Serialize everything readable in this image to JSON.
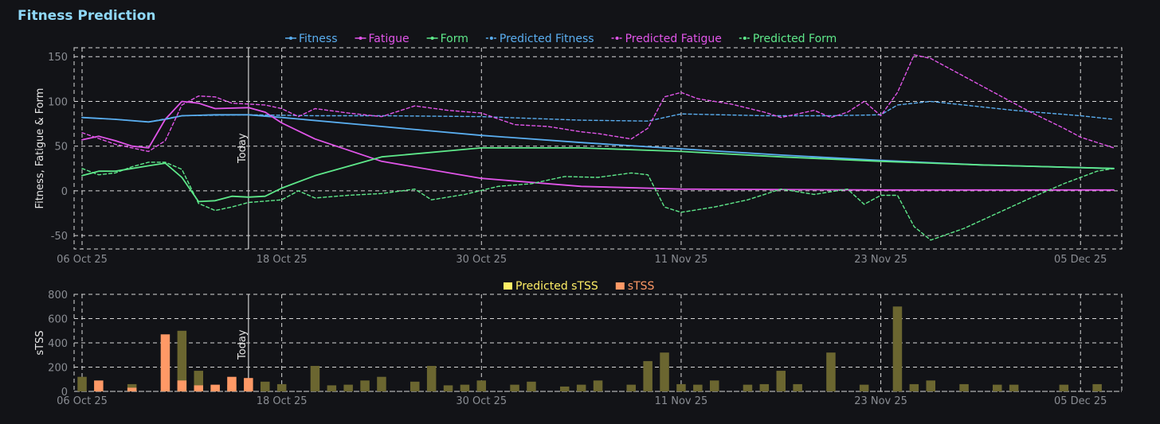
{
  "page": {
    "title": "Fitness Prediction"
  },
  "chart_data": [
    {
      "type": "line",
      "ylabel": "Fitness, Fatigue & Form",
      "ylim": [
        -65,
        160
      ],
      "yticks": [
        -50,
        0,
        50,
        100,
        150
      ],
      "xlim": [
        "2025-10-06",
        "2025-12-07"
      ],
      "xticks": [
        {
          "date": "2025-10-06",
          "label": "06 Oct 25"
        },
        {
          "date": "2025-10-18",
          "label": "18 Oct 25"
        },
        {
          "date": "2025-10-30",
          "label": "30 Oct 25"
        },
        {
          "date": "2025-11-11",
          "label": "11 Nov 25"
        },
        {
          "date": "2025-11-23",
          "label": "23 Nov 25"
        },
        {
          "date": "2025-12-05",
          "label": "05 Dec 25"
        }
      ],
      "grid": true,
      "legend_position": "top-center",
      "today": {
        "date": "2025-10-16",
        "label": "Today"
      },
      "series": [
        {
          "name": "Fitness",
          "color": "#5aaef0",
          "dashed": false,
          "points": [
            [
              "2025-10-06",
              82
            ],
            [
              "2025-10-08",
              80
            ],
            [
              "2025-10-10",
              77
            ],
            [
              "2025-10-11",
              80
            ],
            [
              "2025-10-12",
              84
            ],
            [
              "2025-10-14",
              85
            ],
            [
              "2025-10-16",
              85
            ],
            [
              "2025-10-18",
              82
            ],
            [
              "2025-10-24",
              72
            ],
            [
              "2025-10-30",
              62
            ],
            [
              "2025-11-05",
              54
            ],
            [
              "2025-11-11",
              47
            ],
            [
              "2025-11-17",
              40
            ],
            [
              "2025-11-23",
              34
            ],
            [
              "2025-11-29",
              29
            ],
            [
              "2025-12-07",
              25
            ]
          ]
        },
        {
          "name": "Fatigue",
          "color": "#e055e8",
          "dashed": false,
          "points": [
            [
              "2025-10-06",
              57
            ],
            [
              "2025-10-07",
              61
            ],
            [
              "2025-10-08",
              56
            ],
            [
              "2025-10-09",
              50
            ],
            [
              "2025-10-10",
              48
            ],
            [
              "2025-10-11",
              80
            ],
            [
              "2025-10-12",
              100
            ],
            [
              "2025-10-13",
              98
            ],
            [
              "2025-10-14",
              92
            ],
            [
              "2025-10-16",
              93
            ],
            [
              "2025-10-17",
              88
            ],
            [
              "2025-10-18",
              76
            ],
            [
              "2025-10-20",
              58
            ],
            [
              "2025-10-24",
              33
            ],
            [
              "2025-10-30",
              14
            ],
            [
              "2025-11-05",
              5
            ],
            [
              "2025-11-11",
              2
            ],
            [
              "2025-11-23",
              1
            ],
            [
              "2025-12-07",
              1
            ]
          ]
        },
        {
          "name": "Form",
          "color": "#5ee88a",
          "dashed": false,
          "points": [
            [
              "2025-10-06",
              17
            ],
            [
              "2025-10-07",
              22
            ],
            [
              "2025-10-08",
              22
            ],
            [
              "2025-10-09",
              25
            ],
            [
              "2025-10-10",
              28
            ],
            [
              "2025-10-11",
              31
            ],
            [
              "2025-10-12",
              15
            ],
            [
              "2025-10-13",
              -12
            ],
            [
              "2025-10-14",
              -11
            ],
            [
              "2025-10-15",
              -6
            ],
            [
              "2025-10-16",
              -7
            ],
            [
              "2025-10-17",
              -6
            ],
            [
              "2025-10-18",
              3
            ],
            [
              "2025-10-20",
              17
            ],
            [
              "2025-10-24",
              38
            ],
            [
              "2025-10-30",
              48
            ],
            [
              "2025-11-05",
              48
            ],
            [
              "2025-11-11",
              44
            ],
            [
              "2025-11-17",
              38
            ],
            [
              "2025-11-23",
              33
            ],
            [
              "2025-11-29",
              29
            ],
            [
              "2025-12-07",
              25
            ]
          ]
        },
        {
          "name": "Predicted Fitness",
          "color": "#5aaef0",
          "dashed": true,
          "points": [
            [
              "2025-10-06",
              82
            ],
            [
              "2025-10-08",
              80
            ],
            [
              "2025-10-10",
              77
            ],
            [
              "2025-10-12",
              84
            ],
            [
              "2025-10-16",
              85
            ],
            [
              "2025-10-20",
              84
            ],
            [
              "2025-10-24",
              84
            ],
            [
              "2025-10-30",
              83
            ],
            [
              "2025-11-05",
              79
            ],
            [
              "2025-11-09",
              78
            ],
            [
              "2025-11-11",
              86
            ],
            [
              "2025-11-16",
              84
            ],
            [
              "2025-11-20",
              84
            ],
            [
              "2025-11-23",
              85
            ],
            [
              "2025-11-24",
              96
            ],
            [
              "2025-11-26",
              100
            ],
            [
              "2025-12-01",
              90
            ],
            [
              "2025-12-05",
              84
            ],
            [
              "2025-12-07",
              80
            ]
          ]
        },
        {
          "name": "Predicted Fatigue",
          "color": "#e055e8",
          "dashed": true,
          "points": [
            [
              "2025-10-06",
              65
            ],
            [
              "2025-10-08",
              52
            ],
            [
              "2025-10-10",
              44
            ],
            [
              "2025-10-11",
              56
            ],
            [
              "2025-10-12",
              96
            ],
            [
              "2025-10-13",
              106
            ],
            [
              "2025-10-14",
              105
            ],
            [
              "2025-10-15",
              98
            ],
            [
              "2025-10-17",
              96
            ],
            [
              "2025-10-18",
              92
            ],
            [
              "2025-10-19",
              83
            ],
            [
              "2025-10-20",
              92
            ],
            [
              "2025-10-22",
              87
            ],
            [
              "2025-10-24",
              83
            ],
            [
              "2025-10-26",
              95
            ],
            [
              "2025-10-28",
              90
            ],
            [
              "2025-10-30",
              87
            ],
            [
              "2025-11-01",
              74
            ],
            [
              "2025-11-03",
              72
            ],
            [
              "2025-11-05",
              66
            ],
            [
              "2025-11-06",
              64
            ],
            [
              "2025-11-08",
              58
            ],
            [
              "2025-11-09",
              70
            ],
            [
              "2025-11-10",
              105
            ],
            [
              "2025-11-11",
              110
            ],
            [
              "2025-11-12",
              103
            ],
            [
              "2025-11-14",
              97
            ],
            [
              "2025-11-16",
              88
            ],
            [
              "2025-11-17",
              82
            ],
            [
              "2025-11-19",
              90
            ],
            [
              "2025-11-20",
              82
            ],
            [
              "2025-11-21",
              88
            ],
            [
              "2025-11-22",
              100
            ],
            [
              "2025-11-23",
              84
            ],
            [
              "2025-11-24",
              110
            ],
            [
              "2025-11-25",
              152
            ],
            [
              "2025-11-26",
              148
            ],
            [
              "2025-11-28",
              128
            ],
            [
              "2025-11-30",
              108
            ],
            [
              "2025-12-02",
              88
            ],
            [
              "2025-12-04",
              70
            ],
            [
              "2025-12-05",
              60
            ],
            [
              "2025-12-07",
              48
            ]
          ]
        },
        {
          "name": "Predicted Form",
          "color": "#5ee88a",
          "dashed": true,
          "points": [
            [
              "2025-10-06",
              25
            ],
            [
              "2025-10-07",
              18
            ],
            [
              "2025-10-08",
              20
            ],
            [
              "2025-10-09",
              27
            ],
            [
              "2025-10-10",
              32
            ],
            [
              "2025-10-11",
              32
            ],
            [
              "2025-10-12",
              24
            ],
            [
              "2025-10-13",
              -14
            ],
            [
              "2025-10-14",
              -22
            ],
            [
              "2025-10-15",
              -18
            ],
            [
              "2025-10-16",
              -13
            ],
            [
              "2025-10-18",
              -10
            ],
            [
              "2025-10-19",
              0
            ],
            [
              "2025-10-20",
              -8
            ],
            [
              "2025-10-22",
              -5
            ],
            [
              "2025-10-24",
              -3
            ],
            [
              "2025-10-26",
              2
            ],
            [
              "2025-10-27",
              -10
            ],
            [
              "2025-10-29",
              -4
            ],
            [
              "2025-10-31",
              5
            ],
            [
              "2025-11-02",
              8
            ],
            [
              "2025-11-04",
              16
            ],
            [
              "2025-11-06",
              15
            ],
            [
              "2025-11-08",
              20
            ],
            [
              "2025-11-09",
              18
            ],
            [
              "2025-11-10",
              -18
            ],
            [
              "2025-11-11",
              -24
            ],
            [
              "2025-11-13",
              -18
            ],
            [
              "2025-11-15",
              -10
            ],
            [
              "2025-11-17",
              2
            ],
            [
              "2025-11-19",
              -4
            ],
            [
              "2025-11-21",
              2
            ],
            [
              "2025-11-22",
              -15
            ],
            [
              "2025-11-23",
              -5
            ],
            [
              "2025-11-24",
              -5
            ],
            [
              "2025-11-25",
              -40
            ],
            [
              "2025-11-26",
              -55
            ],
            [
              "2025-11-28",
              -42
            ],
            [
              "2025-11-30",
              -25
            ],
            [
              "2025-12-02",
              -8
            ],
            [
              "2025-12-04",
              8
            ],
            [
              "2025-12-06",
              22
            ],
            [
              "2025-12-07",
              25
            ]
          ]
        }
      ]
    },
    {
      "type": "bar",
      "ylabel": "sTSS",
      "ylim": [
        0,
        800
      ],
      "yticks": [
        0,
        200,
        400,
        600,
        800
      ],
      "xlim": [
        "2025-10-06",
        "2025-12-07"
      ],
      "xticks": [
        {
          "date": "2025-10-06",
          "label": "06 Oct 25"
        },
        {
          "date": "2025-10-18",
          "label": "18 Oct 25"
        },
        {
          "date": "2025-10-30",
          "label": "30 Oct 25"
        },
        {
          "date": "2025-11-11",
          "label": "11 Nov 25"
        },
        {
          "date": "2025-11-23",
          "label": "23 Nov 25"
        },
        {
          "date": "2025-12-05",
          "label": "05 Dec 25"
        }
      ],
      "grid": true,
      "legend_position": "top-center",
      "today": {
        "date": "2025-10-16",
        "label": "Today"
      },
      "series": [
        {
          "name": "Predicted sTSS",
          "color": "#ffee66",
          "bar_color": "#6b6630",
          "points": [
            [
              "2025-10-06",
              120
            ],
            [
              "2025-10-09",
              60
            ],
            [
              "2025-10-12",
              500
            ],
            [
              "2025-10-13",
              170
            ],
            [
              "2025-10-14",
              50
            ],
            [
              "2025-10-15",
              55
            ],
            [
              "2025-10-17",
              80
            ],
            [
              "2025-10-18",
              60
            ],
            [
              "2025-10-20",
              210
            ],
            [
              "2025-10-21",
              50
            ],
            [
              "2025-10-22",
              55
            ],
            [
              "2025-10-23",
              90
            ],
            [
              "2025-10-24",
              120
            ],
            [
              "2025-10-26",
              80
            ],
            [
              "2025-10-27",
              210
            ],
            [
              "2025-10-28",
              50
            ],
            [
              "2025-10-29",
              55
            ],
            [
              "2025-10-30",
              90
            ],
            [
              "2025-11-01",
              55
            ],
            [
              "2025-11-02",
              80
            ],
            [
              "2025-11-04",
              40
            ],
            [
              "2025-11-05",
              55
            ],
            [
              "2025-11-06",
              90
            ],
            [
              "2025-11-08",
              55
            ],
            [
              "2025-11-09",
              250
            ],
            [
              "2025-11-10",
              320
            ],
            [
              "2025-11-11",
              60
            ],
            [
              "2025-11-12",
              55
            ],
            [
              "2025-11-13",
              90
            ],
            [
              "2025-11-15",
              55
            ],
            [
              "2025-11-16",
              60
            ],
            [
              "2025-11-17",
              170
            ],
            [
              "2025-11-18",
              60
            ],
            [
              "2025-11-20",
              320
            ],
            [
              "2025-11-22",
              55
            ],
            [
              "2025-11-24",
              700
            ],
            [
              "2025-11-25",
              60
            ],
            [
              "2025-11-26",
              90
            ],
            [
              "2025-11-28",
              60
            ],
            [
              "2025-11-30",
              55
            ],
            [
              "2025-12-01",
              55
            ],
            [
              "2025-12-04",
              55
            ],
            [
              "2025-12-06",
              60
            ]
          ]
        },
        {
          "name": "sTSS",
          "color": "#ff9966",
          "bar_color": "#ff9966",
          "points": [
            [
              "2025-10-07",
              90
            ],
            [
              "2025-10-09",
              30
            ],
            [
              "2025-10-11",
              470
            ],
            [
              "2025-10-12",
              90
            ],
            [
              "2025-10-13",
              50
            ],
            [
              "2025-10-14",
              55
            ],
            [
              "2025-10-15",
              120
            ],
            [
              "2025-10-16",
              110
            ]
          ]
        }
      ]
    }
  ]
}
